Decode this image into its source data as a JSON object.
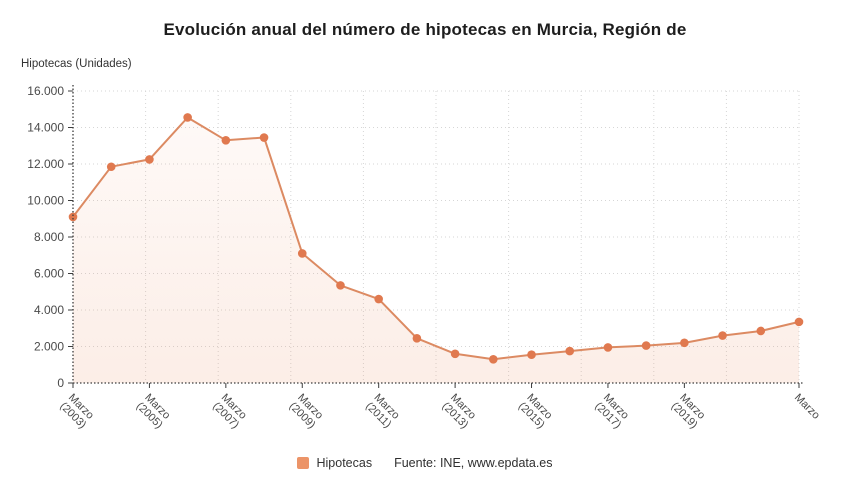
{
  "title": "Evolución anual del número de hipotecas en Murcia, Región de",
  "y_axis_unit_label": "Hipotecas (Unidades)",
  "legend": {
    "series_label": "Hipotecas",
    "source_text": "Fuente: INE, www.epdata.es"
  },
  "colors": {
    "line": "#dc8a62",
    "marker": "#e0794f",
    "legend_swatch": "#ec9468",
    "area_top": "rgba(236,146,104,0.05)",
    "area_bottom": "rgba(236,146,104,0.16)",
    "grid": "#d6d6d6",
    "axis": "#3c3c3c",
    "tick_text": "#4a4a4a"
  },
  "chart_data": {
    "type": "line",
    "title": "Evolución anual del número de hipotecas en Murcia, Región de",
    "xlabel": "",
    "ylabel": "Hipotecas (Unidades)",
    "ylim": [
      0,
      16000
    ],
    "yticks": [
      0,
      2000,
      4000,
      6000,
      8000,
      10000,
      12000,
      14000,
      16000
    ],
    "grid": true,
    "legend_position": "bottom",
    "categories": [
      "Marzo 2003",
      "Marzo 2004",
      "Marzo 2005",
      "Marzo 2006",
      "Marzo 2007",
      "Marzo 2008",
      "Marzo 2009",
      "Marzo 2010",
      "Marzo 2011",
      "Marzo 2012",
      "Marzo 2013",
      "Marzo 2014",
      "Marzo 2015",
      "Marzo 2016",
      "Marzo 2017",
      "Marzo 2018",
      "Marzo 2019",
      "Marzo 2020",
      "Marzo 2021",
      "Marzo 2022"
    ],
    "series": [
      {
        "name": "Hipotecas",
        "values": [
          9100,
          11850,
          12250,
          14550,
          13300,
          13450,
          7100,
          5350,
          4600,
          2450,
          1600,
          1300,
          1550,
          1750,
          1950,
          2050,
          2200,
          2600,
          2850,
          3350
        ]
      }
    ],
    "x_tick_labels": [
      {
        "index": 0,
        "line1": "Marzo",
        "line2": "(2003)"
      },
      {
        "index": 2,
        "line1": "Marzo",
        "line2": "(2005)"
      },
      {
        "index": 4,
        "line1": "Marzo",
        "line2": "(2007)"
      },
      {
        "index": 6,
        "line1": "Marzo",
        "line2": "(2009)"
      },
      {
        "index": 8,
        "line1": "Marzo",
        "line2": "(2011)"
      },
      {
        "index": 10,
        "line1": "Marzo",
        "line2": "(2013)"
      },
      {
        "index": 12,
        "line1": "Marzo",
        "line2": "(2015)"
      },
      {
        "index": 14,
        "line1": "Marzo",
        "line2": "(2017)"
      },
      {
        "index": 16,
        "line1": "Marzo",
        "line2": "(2019)"
      },
      {
        "index": 19,
        "line1": "Marzo",
        "line2": ""
      }
    ]
  }
}
